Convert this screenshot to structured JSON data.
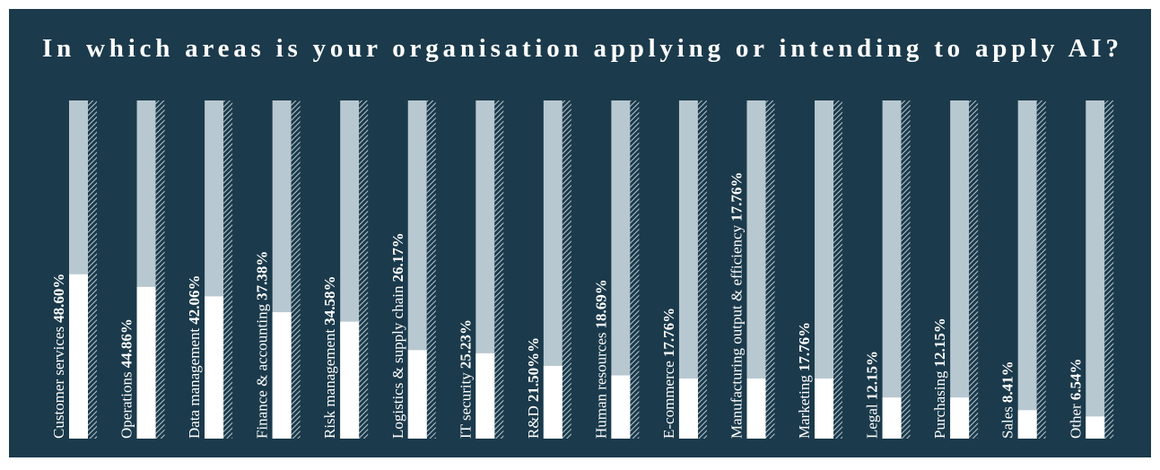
{
  "chart_data": {
    "type": "bar",
    "title": "In which areas is your organisation applying or intending to apply AI?",
    "categories": [
      "Customer services",
      "Operations",
      "Data management",
      "Finance & accounting",
      "Risk management",
      "Logistics & supply chain",
      "IT security",
      "R&D",
      "Human resources",
      "E-commerce",
      "Manufacturing output & efficiency",
      "Marketing",
      "Legal",
      "Purchasing",
      "Sales",
      "Other"
    ],
    "values": [
      48.6,
      44.86,
      42.06,
      37.38,
      34.58,
      26.17,
      25.23,
      21.5,
      18.69,
      17.76,
      17.76,
      17.76,
      12.15,
      12.15,
      8.41,
      6.54
    ],
    "value_labels": [
      "48.60%",
      "44.86%",
      "42.06%",
      "37.38%",
      "34.58%",
      "26.17%",
      "25.23%",
      "21.50%%",
      "18.69%",
      "17.76%",
      "17.76%",
      "17.76%",
      "12.15%",
      "12.15%",
      "8.41%",
      "6.54%"
    ],
    "color": "#ffffff",
    "ylim": [
      0,
      100
    ]
  }
}
